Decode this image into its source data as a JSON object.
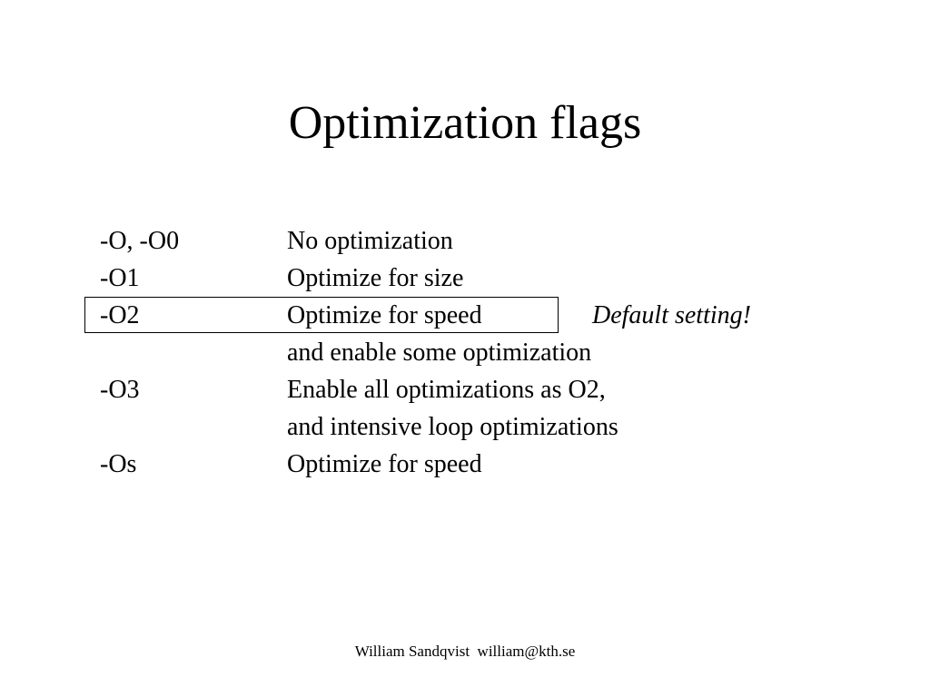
{
  "slide": {
    "title": "Optimization flags",
    "rows": [
      {
        "flag": "-O, -O0",
        "description": "No optimization"
      },
      {
        "flag": "-O1",
        "description": "Optimize for size"
      },
      {
        "flag": "-O2",
        "description": "Optimize for speed"
      },
      {
        "flag": "",
        "description": "and enable some optimization"
      },
      {
        "flag": "-O3",
        "description": "Enable all optimizations as O2,"
      },
      {
        "flag": "",
        "description": "and intensive loop optimizations"
      },
      {
        "flag": "-Os",
        "description": "Optimize for speed"
      }
    ],
    "default_note": "Default setting!",
    "footer": "William Sandqvist  william@kth.se"
  }
}
